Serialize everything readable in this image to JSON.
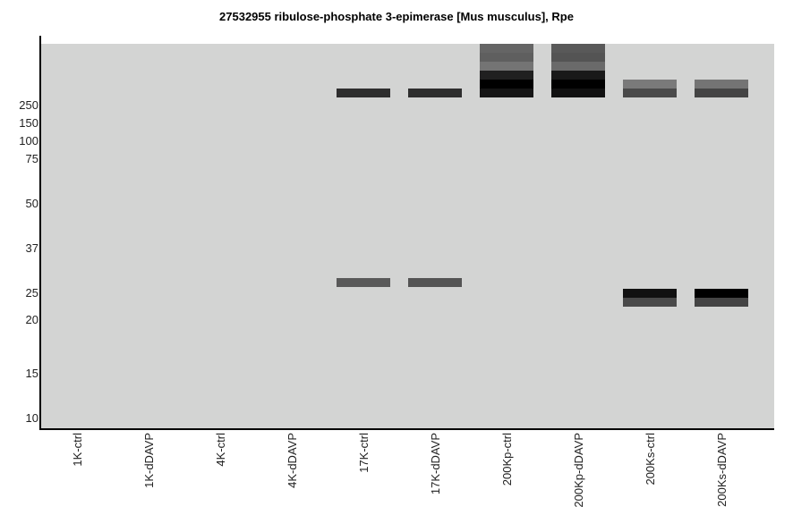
{
  "chart_data": {
    "type": "heatmap",
    "title": "27532955 ribulose-phosphate 3-epimerase [Mus musculus], Rpe",
    "colors": {
      "background": "#d3d4d3",
      "band": "#000000",
      "axis": "#000000"
    },
    "lanes": [
      "1K-ctrl",
      "1K-dDAVP",
      "4K-ctrl",
      "4K-dDAVP",
      "17K-ctrl",
      "17K-dDAVP",
      "200Kp-ctrl",
      "200Kp-dDAVP",
      "200Ks-ctrl",
      "200Ks-dDAVP"
    ],
    "mw_markers": [
      "250",
      "150",
      "100",
      "75",
      "50",
      "37",
      "25",
      "20",
      "15",
      "10"
    ],
    "bands": [
      {
        "lane": "17K-ctrl",
        "mw": 250,
        "intensity": 0.78
      },
      {
        "lane": "17K-ctrl",
        "mw": 25,
        "intensity": 0.58
      },
      {
        "lane": "17K-dDAVP",
        "mw": 250,
        "intensity": 0.78
      },
      {
        "lane": "17K-dDAVP",
        "mw": 25,
        "intensity": 0.6
      },
      {
        "lane": "200Kp-ctrl",
        "mw": 600,
        "intensity": 0.52
      },
      {
        "lane": "200Kp-ctrl",
        "mw": 500,
        "intensity": 0.55
      },
      {
        "lane": "200Kp-ctrl",
        "mw": 420,
        "intensity": 0.45
      },
      {
        "lane": "200Kp-ctrl",
        "mw": 350,
        "intensity": 0.85
      },
      {
        "lane": "200Kp-ctrl",
        "mw": 300,
        "intensity": 1.0
      },
      {
        "lane": "200Kp-ctrl",
        "mw": 250,
        "intensity": 0.9
      },
      {
        "lane": "200Kp-dDAVP",
        "mw": 600,
        "intensity": 0.58
      },
      {
        "lane": "200Kp-dDAVP",
        "mw": 500,
        "intensity": 0.6
      },
      {
        "lane": "200Kp-dDAVP",
        "mw": 420,
        "intensity": 0.5
      },
      {
        "lane": "200Kp-dDAVP",
        "mw": 350,
        "intensity": 0.88
      },
      {
        "lane": "200Kp-dDAVP",
        "mw": 300,
        "intensity": 1.0
      },
      {
        "lane": "200Kp-dDAVP",
        "mw": 250,
        "intensity": 0.92
      },
      {
        "lane": "200Ks-ctrl",
        "mw": 300,
        "intensity": 0.42
      },
      {
        "lane": "200Ks-ctrl",
        "mw": 250,
        "intensity": 0.65
      },
      {
        "lane": "200Ks-ctrl",
        "mw": 23,
        "intensity": 0.92
      },
      {
        "lane": "200Ks-ctrl",
        "mw": 21,
        "intensity": 0.65
      },
      {
        "lane": "200Ks-dDAVP",
        "mw": 300,
        "intensity": 0.45
      },
      {
        "lane": "200Ks-dDAVP",
        "mw": 250,
        "intensity": 0.68
      },
      {
        "lane": "200Ks-dDAVP",
        "mw": 23,
        "intensity": 1.0
      },
      {
        "lane": "200Ks-dDAVP",
        "mw": 21,
        "intensity": 0.68
      }
    ]
  }
}
